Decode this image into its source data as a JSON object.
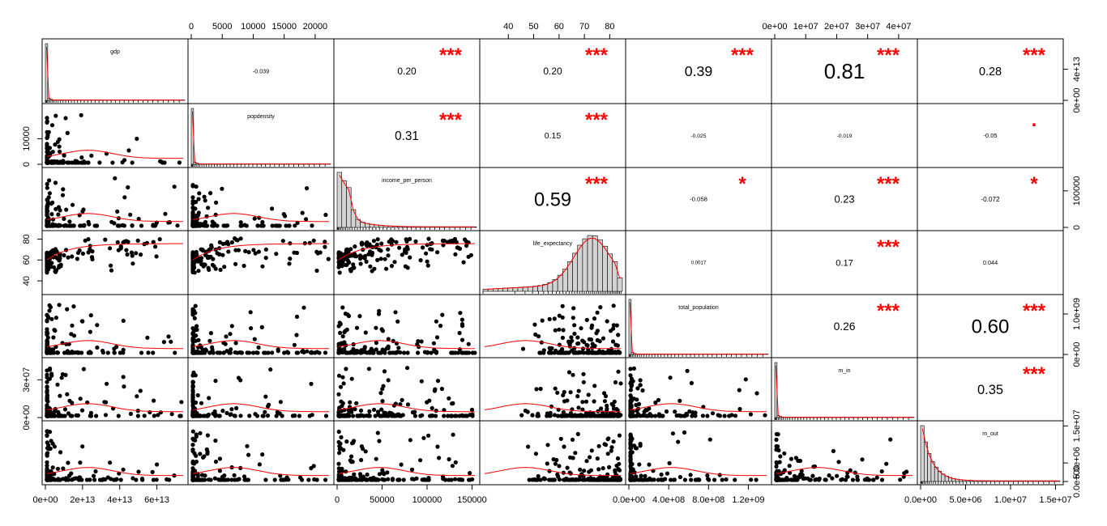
{
  "chart_data": {
    "type": "scatter",
    "variables": [
      "gdp",
      "popdensity",
      "income_per_person",
      "life_expectancy",
      "total_population",
      "m_in",
      "m_out"
    ],
    "correlations": [
      {
        "row": 0,
        "col": 1,
        "r": "-0.039",
        "stars": ""
      },
      {
        "row": 0,
        "col": 2,
        "r": "0.20",
        "stars": "***"
      },
      {
        "row": 0,
        "col": 3,
        "r": "0.20",
        "stars": "***"
      },
      {
        "row": 0,
        "col": 4,
        "r": "0.39",
        "stars": "***"
      },
      {
        "row": 0,
        "col": 5,
        "r": "0.81",
        "stars": "***"
      },
      {
        "row": 0,
        "col": 6,
        "r": "0.28",
        "stars": "***"
      },
      {
        "row": 1,
        "col": 2,
        "r": "0.31",
        "stars": "***"
      },
      {
        "row": 1,
        "col": 3,
        "r": "0.15",
        "stars": "***"
      },
      {
        "row": 1,
        "col": 4,
        "r": "-0.025",
        "stars": ""
      },
      {
        "row": 1,
        "col": 5,
        "r": "-0.019",
        "stars": ""
      },
      {
        "row": 1,
        "col": 6,
        "r": "-0.05",
        "stars": "."
      },
      {
        "row": 2,
        "col": 3,
        "r": "0.59",
        "stars": "***"
      },
      {
        "row": 2,
        "col": 4,
        "r": "-0.058",
        "stars": "*"
      },
      {
        "row": 2,
        "col": 5,
        "r": "0.23",
        "stars": "***"
      },
      {
        "row": 2,
        "col": 6,
        "r": "-0.072",
        "stars": "*"
      },
      {
        "row": 3,
        "col": 4,
        "r": "0.0017",
        "stars": ""
      },
      {
        "row": 3,
        "col": 5,
        "r": "0.17",
        "stars": "***"
      },
      {
        "row": 3,
        "col": 6,
        "r": "0.044",
        "stars": ""
      },
      {
        "row": 4,
        "col": 5,
        "r": "0.26",
        "stars": "***"
      },
      {
        "row": 4,
        "col": 6,
        "r": "0.60",
        "stars": "***"
      },
      {
        "row": 5,
        "col": 6,
        "r": "0.35",
        "stars": "***"
      }
    ],
    "axes": {
      "bottom": [
        {
          "col": 0,
          "ticks": [
            0,
            20000000000000.0,
            40000000000000.0,
            60000000000000.0
          ],
          "labels": [
            "0e+00",
            "2e+13",
            "4e+13",
            "6e+13"
          ],
          "range": [
            0,
            75000000000000.0
          ]
        },
        {
          "col": 2,
          "ticks": [
            0,
            50000,
            100000,
            150000
          ],
          "labels": [
            "0",
            "50000",
            "100000",
            "150000"
          ],
          "range": [
            0,
            155000
          ]
        },
        {
          "col": 4,
          "ticks": [
            0,
            400000000.0,
            800000000.0,
            1200000000.0
          ],
          "labels": [
            "0.0e+00",
            "4.0e+08",
            "8.0e+08",
            "1.2e+09"
          ],
          "range": [
            0,
            1400000000.0
          ]
        },
        {
          "col": 6,
          "ticks": [
            0,
            5000000.0,
            10000000.0,
            15000000.0
          ],
          "labels": [
            "0.0e+00",
            "5.0e+06",
            "1.0e+07",
            "1.5e+07"
          ],
          "range": [
            0,
            15500000.0
          ]
        }
      ],
      "top": [
        {
          "col": 1,
          "ticks": [
            0,
            5000,
            10000,
            15000,
            20000
          ],
          "labels": [
            "0",
            "5000",
            "10000",
            "15000",
            "20000"
          ],
          "range": [
            0,
            22500
          ]
        },
        {
          "col": 3,
          "ticks": [
            40,
            50,
            60,
            70,
            80
          ],
          "labels": [
            "40",
            "50",
            "60",
            "70",
            "80"
          ],
          "range": [
            30,
            85
          ]
        },
        {
          "col": 5,
          "ticks": [
            0,
            10000000.0,
            20000000.0,
            30000000.0,
            40000000.0
          ],
          "labels": [
            "0e+00",
            "1e+07",
            "2e+07",
            "3e+07",
            "4e+07"
          ],
          "range": [
            0,
            45000000.0
          ]
        }
      ],
      "left": [
        {
          "row": 1,
          "ticks": [
            0,
            10000
          ],
          "labels": [
            "0",
            "10000"
          ],
          "range": [
            0,
            22500
          ]
        },
        {
          "row": 3,
          "ticks": [
            40,
            60,
            80
          ],
          "labels": [
            "40",
            "60",
            "80"
          ],
          "range": [
            30,
            85
          ]
        },
        {
          "row": 5,
          "ticks": [
            0,
            30000000.0
          ],
          "labels": [
            "0e+00",
            "3e+07"
          ],
          "range": [
            0,
            45000000.0
          ]
        }
      ],
      "right": [
        {
          "row": 0,
          "ticks": [
            0,
            40000000000000.0
          ],
          "labels": [
            "0e+00",
            "4e+13"
          ],
          "range": [
            0,
            75000000000000.0
          ]
        },
        {
          "row": 2,
          "ticks": [
            0,
            100000
          ],
          "labels": [
            "0",
            "100000"
          ],
          "range": [
            0,
            155000
          ]
        },
        {
          "row": 4,
          "ticks": [
            0,
            1000000000.0
          ],
          "labels": [
            "0e+00",
            "1.0e+09"
          ],
          "range": [
            0,
            1400000000.0
          ]
        },
        {
          "row": 6,
          "ticks": [
            0,
            5000000.0,
            15000000.0
          ],
          "labels": [
            "0.0e+00",
            "5.0e+06",
            "1.5e+07"
          ],
          "range": [
            0,
            15500000.0
          ]
        }
      ]
    },
    "colors": {
      "stars": "#ff0000",
      "smooth": "#ff0000",
      "points": "#000000",
      "hist_fill": "#d3d3d3"
    }
  }
}
